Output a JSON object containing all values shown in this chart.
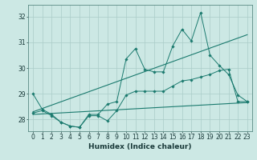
{
  "x": [
    0,
    1,
    2,
    3,
    4,
    5,
    6,
    7,
    8,
    9,
    10,
    11,
    12,
    13,
    14,
    15,
    16,
    17,
    18,
    19,
    20,
    21,
    22,
    23
  ],
  "y_main": [
    29.0,
    28.4,
    28.2,
    27.9,
    27.75,
    27.7,
    28.2,
    28.2,
    28.6,
    28.7,
    30.35,
    30.75,
    29.95,
    29.85,
    29.85,
    30.85,
    31.5,
    31.05,
    32.15,
    30.5,
    30.1,
    29.75,
    28.95,
    28.7
  ],
  "y_low": [
    28.25,
    28.35,
    28.15,
    27.9,
    27.75,
    27.7,
    28.15,
    28.15,
    27.95,
    28.35,
    28.95,
    29.1,
    29.1,
    29.1,
    29.1,
    29.3,
    29.5,
    29.55,
    29.65,
    29.75,
    29.9,
    29.95,
    28.7,
    28.7
  ],
  "y_trend1": [
    28.3,
    28.43,
    28.56,
    28.69,
    28.82,
    28.95,
    29.08,
    29.21,
    29.34,
    29.47,
    29.6,
    29.73,
    29.86,
    29.99,
    30.12,
    30.25,
    30.38,
    30.51,
    30.64,
    30.77,
    30.9,
    31.03,
    31.16,
    31.29
  ],
  "y_trend2": [
    28.2,
    28.22,
    28.24,
    28.26,
    28.28,
    28.3,
    28.32,
    28.34,
    28.36,
    28.38,
    28.4,
    28.42,
    28.44,
    28.46,
    28.48,
    28.5,
    28.52,
    28.54,
    28.56,
    28.58,
    28.6,
    28.62,
    28.64,
    28.66
  ],
  "color": "#1a7a6e",
  "bg_color": "#cce8e4",
  "grid_color": "#aaccc8",
  "ylim": [
    27.55,
    32.45
  ],
  "yticks": [
    28,
    29,
    30,
    31,
    32
  ],
  "xlim": [
    -0.5,
    23.5
  ],
  "xlabel": "Humidex (Indice chaleur)",
  "xlabel_fontsize": 6.5,
  "tick_fontsize": 5.5,
  "marker": "D",
  "markersize": 1.8,
  "linewidth_data": 0.7,
  "linewidth_trend": 0.8
}
